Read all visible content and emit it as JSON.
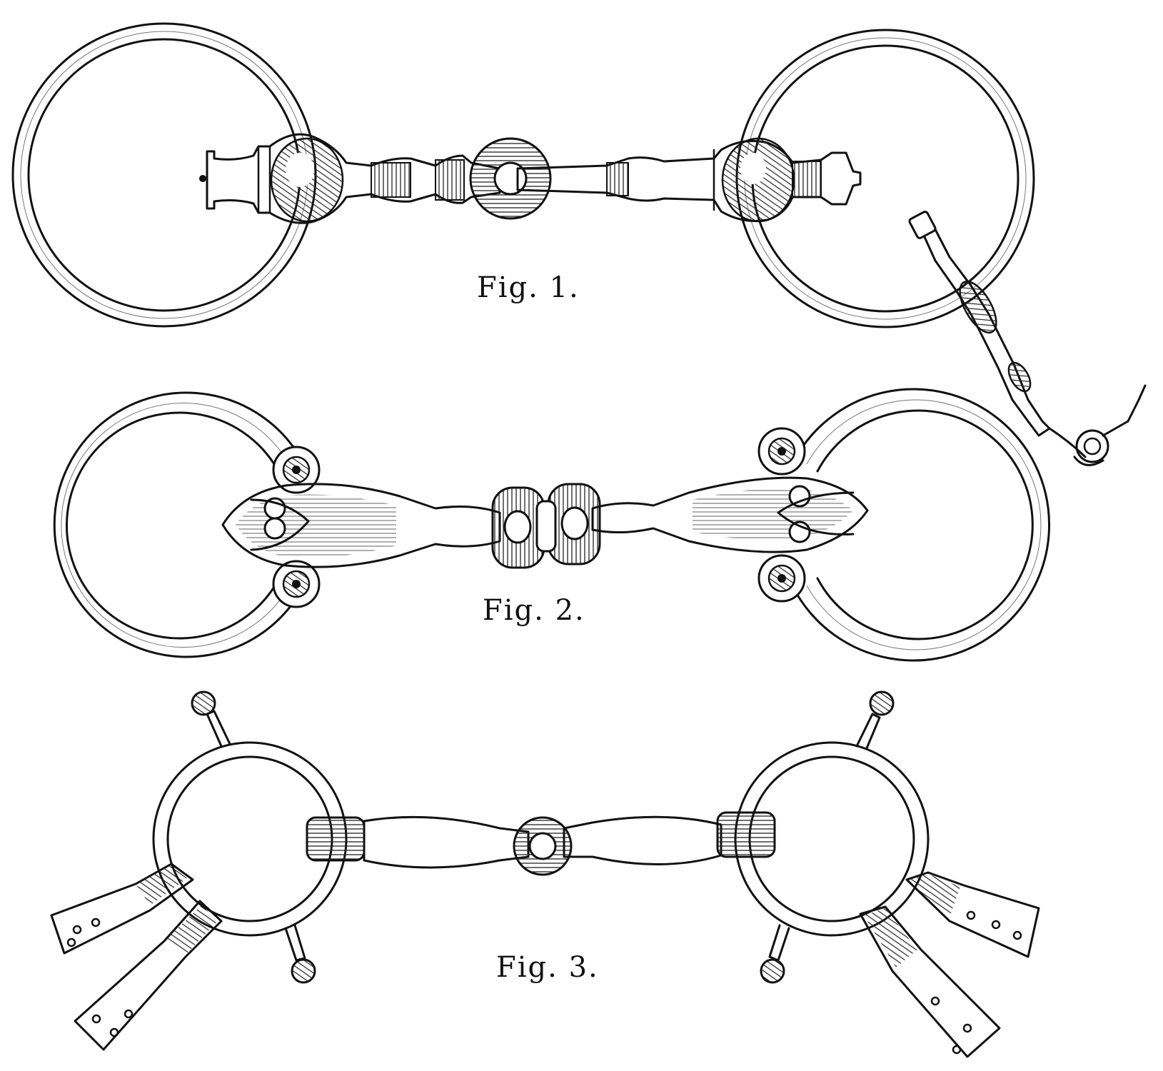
{
  "figures": [
    {
      "id": "fig1",
      "caption": "Fig. 1."
    },
    {
      "id": "fig2",
      "caption": "Fig. 2."
    },
    {
      "id": "fig3",
      "caption": "Fig. 3."
    }
  ],
  "colors": {
    "ink": "#111111",
    "paper": "#ffffff"
  }
}
